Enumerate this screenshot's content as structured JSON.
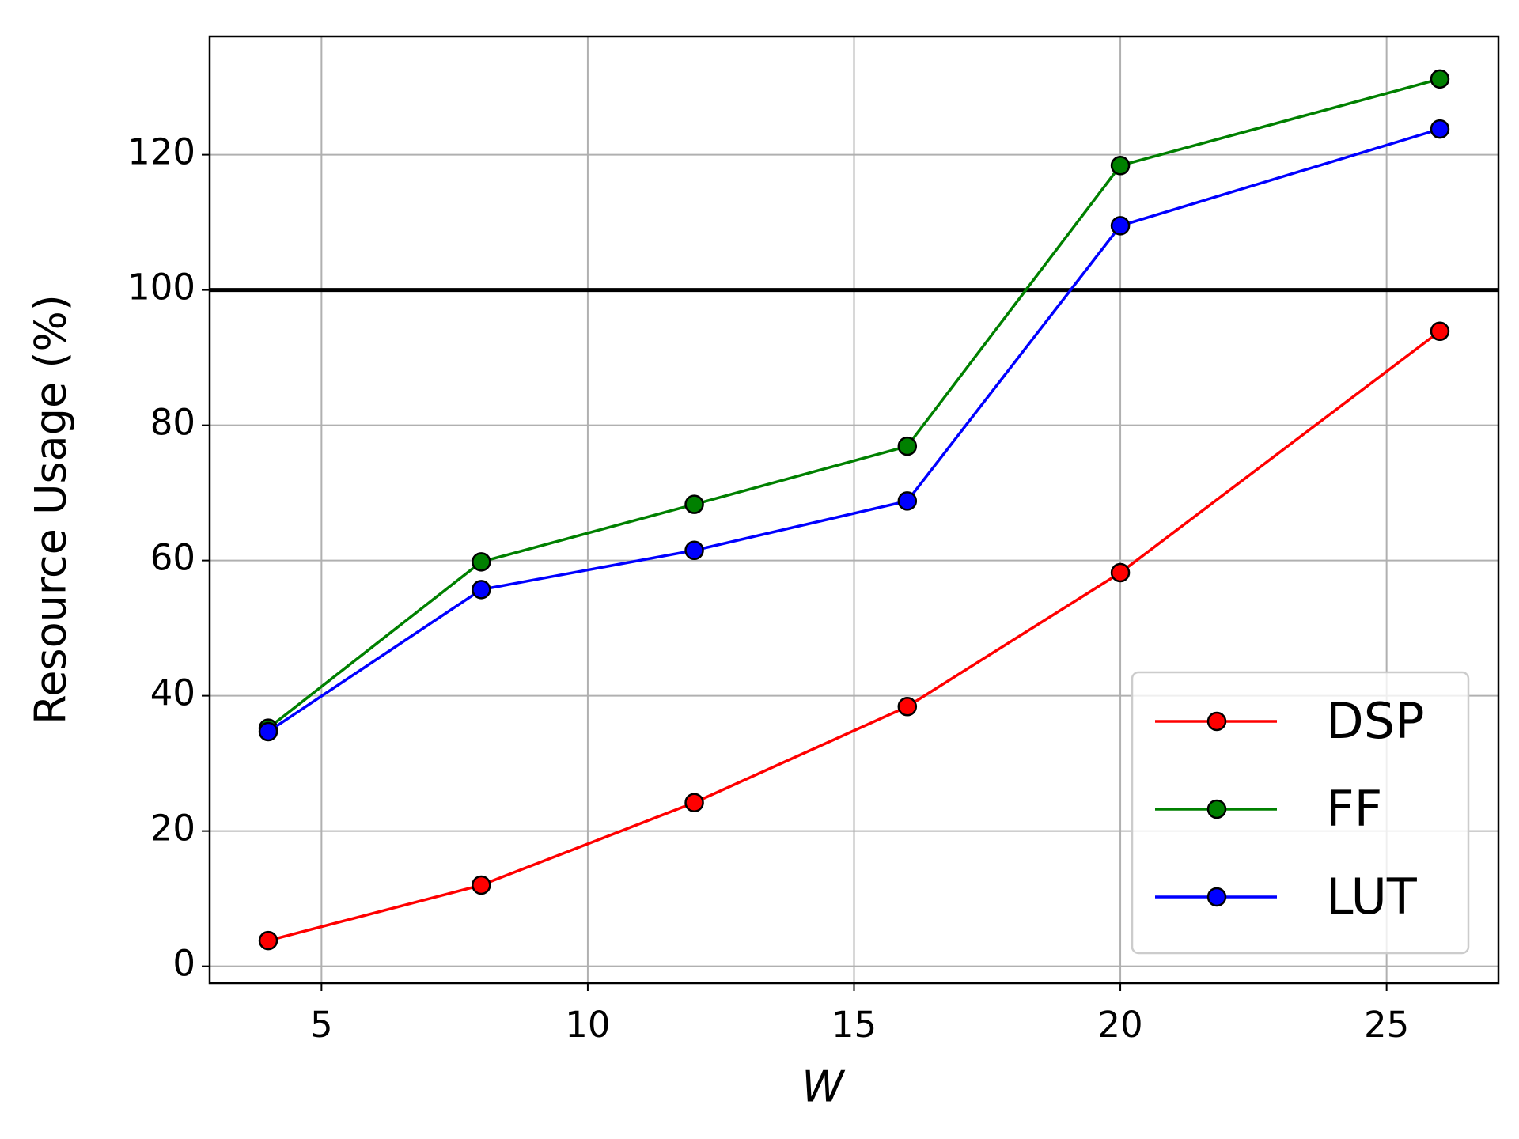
{
  "chart_data": {
    "type": "line",
    "x_label": "W",
    "y_label": "Resource Usage (%)",
    "x": [
      4,
      8,
      12,
      16,
      20,
      26
    ],
    "series": [
      {
        "name": "DSP",
        "color": "#ff0000",
        "values": [
          3.8,
          12.0,
          24.2,
          38.4,
          58.2,
          93.9
        ]
      },
      {
        "name": "FF",
        "color": "#008000",
        "values": [
          35.2,
          59.8,
          68.3,
          76.9,
          118.4,
          131.2
        ]
      },
      {
        "name": "LUT",
        "color": "#0000ff",
        "values": [
          34.7,
          55.7,
          61.5,
          68.8,
          109.5,
          123.8
        ]
      }
    ],
    "xlim": [
      2.9,
      27.1
    ],
    "xticks": [
      5,
      10,
      15,
      20,
      25
    ],
    "ylim": [
      -2.5,
      137.5
    ],
    "yticks": [
      0,
      20,
      40,
      60,
      80,
      100,
      120
    ],
    "hline": 100,
    "grid": true,
    "legend": "lower right"
  }
}
